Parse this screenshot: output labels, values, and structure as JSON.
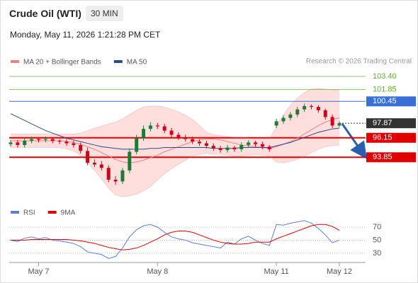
{
  "header": {
    "title": "Crude Oil (WTI)",
    "interval": "30 MIN",
    "timestamp": "Monday, May 11, 2026 1:21:28 PM CET",
    "credit": "Research © 2026 Trading Central"
  },
  "chart_data": [
    {
      "type": "candlestick",
      "ylim": [
        90.2,
        104.4
      ],
      "up_color": "#1e7b34",
      "down_color": "#d0021b",
      "open": [
        95.4,
        95.6,
        95.3,
        95.8,
        96.0,
        95.9,
        96.0,
        95.8,
        95.7,
        95.5,
        95.3,
        94.6,
        93.2,
        93.0,
        92.6,
        91.2,
        91.0,
        92.3,
        94.5,
        96.1,
        97.2,
        97.6,
        97.5,
        97.0,
        96.5,
        96.2,
        96.0,
        95.7,
        95.5,
        95.2,
        94.9,
        94.7,
        95.0,
        94.8,
        95.3,
        95.6,
        95.4,
        95.1,
        97.6,
        98.1,
        98.5,
        98.9,
        99.5,
        99.9,
        99.8,
        99.4,
        98.6,
        97.6
      ],
      "high": [
        95.9,
        95.9,
        96.1,
        96.3,
        96.2,
        96.3,
        96.2,
        96.0,
        96.0,
        95.8,
        95.6,
        95.0,
        93.6,
        93.4,
        92.9,
        91.6,
        92.6,
        94.9,
        96.5,
        97.6,
        98.0,
        97.9,
        97.8,
        97.3,
        96.8,
        96.5,
        96.3,
        96.0,
        95.8,
        95.5,
        95.2,
        95.3,
        95.2,
        95.6,
        95.9,
        95.8,
        95.7,
        95.3,
        98.4,
        98.8,
        99.2,
        99.8,
        100.2,
        100.1,
        100.0,
        99.6,
        98.9,
        98.1
      ],
      "low": [
        95.1,
        95.0,
        95.0,
        95.5,
        95.6,
        95.6,
        95.5,
        95.4,
        95.2,
        95.0,
        94.3,
        92.9,
        92.7,
        92.3,
        90.9,
        90.6,
        90.7,
        92.0,
        94.2,
        95.8,
        96.9,
        97.2,
        96.7,
        96.2,
        95.9,
        95.7,
        95.4,
        95.2,
        94.9,
        94.6,
        94.4,
        94.4,
        94.5,
        94.5,
        95.0,
        95.1,
        94.8,
        94.5,
        97.3,
        97.8,
        98.2,
        98.6,
        99.2,
        99.5,
        99.1,
        98.3,
        97.3,
        97.4
      ],
      "close": [
        95.6,
        95.3,
        95.8,
        96.0,
        95.9,
        96.0,
        95.8,
        95.7,
        95.5,
        95.3,
        94.6,
        93.2,
        93.0,
        92.6,
        91.2,
        91.0,
        92.3,
        94.5,
        96.1,
        97.2,
        97.6,
        97.5,
        97.0,
        96.5,
        96.2,
        96.0,
        95.7,
        95.5,
        95.2,
        94.9,
        94.7,
        95.0,
        94.8,
        95.3,
        95.6,
        95.4,
        95.1,
        94.8,
        98.1,
        98.5,
        98.9,
        99.5,
        99.9,
        99.8,
        99.4,
        98.6,
        97.6,
        97.87
      ],
      "series": [
        {
          "name": "MA 20 + Bollinger Bands",
          "color": "#f08080",
          "band_color": "#ffd6d6",
          "values": [
            95.8,
            95.8,
            95.8,
            95.8,
            95.8,
            95.8,
            95.8,
            95.8,
            95.7,
            95.6,
            95.4,
            95.1,
            94.8,
            94.4,
            94.0,
            93.6,
            93.3,
            93.2,
            93.3,
            93.5,
            93.8,
            94.1,
            94.5,
            94.8,
            95.1,
            95.4,
            95.7,
            95.9,
            96.0,
            96.0,
            95.9,
            95.7,
            95.5,
            95.3,
            95.2,
            95.1,
            95.0,
            94.9,
            95.1,
            95.4,
            95.7,
            96.1,
            96.6,
            97.1,
            97.6,
            98.0,
            98.3,
            98.5
          ],
          "upper": [
            96.6,
            96.6,
            96.6,
            96.6,
            96.6,
            96.6,
            96.6,
            96.6,
            96.6,
            96.6,
            96.7,
            97.0,
            97.3,
            97.5,
            97.8,
            98.0,
            98.4,
            98.9,
            99.4,
            99.8,
            99.9,
            99.9,
            99.8,
            99.5,
            99.2,
            98.8,
            98.3,
            97.6,
            96.8,
            96.5,
            96.4,
            96.3,
            96.2,
            96.2,
            96.1,
            96.0,
            96.0,
            96.0,
            97.5,
            98.8,
            100.0,
            100.8,
            101.5,
            101.9,
            102.0,
            101.9,
            101.8,
            101.8
          ],
          "lower": [
            95.0,
            95.0,
            95.0,
            95.0,
            95.0,
            95.0,
            95.0,
            95.0,
            94.8,
            94.6,
            94.1,
            93.2,
            92.3,
            91.3,
            90.2,
            89.4,
            89.2,
            89.3,
            89.5,
            89.9,
            90.4,
            91.2,
            91.9,
            92.5,
            93.0,
            93.5,
            94.0,
            94.2,
            94.3,
            94.2,
            94.2,
            94.1,
            94.0,
            94.0,
            94.1,
            94.2,
            94.1,
            94.0,
            93.3,
            93.2,
            93.4,
            93.6,
            94.0,
            94.4,
            94.8,
            95.1,
            95.2,
            95.3
          ]
        },
        {
          "name": "MA 50",
          "color": "#2b4a8b",
          "values": [
            99.0,
            98.6,
            98.2,
            97.8,
            97.4,
            97.0,
            96.7,
            96.4,
            96.1,
            95.9,
            95.7,
            95.5,
            95.3,
            95.1,
            95.0,
            94.9,
            94.8,
            94.8,
            94.8,
            94.8,
            94.9,
            94.9,
            95.0,
            95.0,
            95.0,
            95.0,
            95.0,
            95.0,
            95.0,
            94.9,
            94.9,
            94.9,
            94.9,
            95.0,
            95.0,
            95.0,
            95.0,
            95.0,
            95.2,
            95.4,
            95.6,
            95.9,
            96.2,
            96.5,
            96.8,
            97.0,
            97.2,
            97.3
          ]
        }
      ],
      "levels": [
        {
          "value": 103.4,
          "label": "103.40",
          "color": "#5fae2e",
          "boxed": false,
          "line": "thin"
        },
        {
          "value": 101.85,
          "label": "101.85",
          "color": "#5fae2e",
          "boxed": false,
          "line": "thin"
        },
        {
          "value": 100.45,
          "label": "100.45",
          "color": "#3a6fd8",
          "boxed": true,
          "line": "thin"
        },
        {
          "value": 97.87,
          "label": "97.87",
          "color": "#333333",
          "boxed": true,
          "line": "dotted"
        },
        {
          "value": 96.15,
          "label": "96.15",
          "color": "#e00000",
          "boxed": true,
          "line": "bold"
        },
        {
          "value": 93.85,
          "label": "93.85",
          "color": "#e00000",
          "boxed": true,
          "line": "bold"
        }
      ]
    },
    {
      "type": "line",
      "ylim": [
        18,
        83
      ],
      "yticks": [
        30,
        50,
        70
      ],
      "grid": true,
      "categories": [
        null,
        null,
        null,
        null,
        "May 7",
        null,
        null,
        null,
        null,
        null,
        null,
        null,
        null,
        null,
        null,
        null,
        null,
        null,
        null,
        null,
        null,
        "May 8",
        null,
        null,
        null,
        null,
        null,
        null,
        null,
        null,
        null,
        null,
        null,
        null,
        null,
        null,
        null,
        null,
        "May 11",
        null,
        null,
        null,
        null,
        null,
        null,
        null,
        null,
        "May 12"
      ],
      "series": [
        {
          "name": "RSI",
          "color": "#5b7fd6",
          "values": [
            50,
            48,
            53,
            55,
            52,
            54,
            50,
            49,
            47,
            45,
            40,
            32,
            30,
            28,
            22,
            25,
            38,
            55,
            66,
            72,
            74,
            70,
            62,
            55,
            52,
            50,
            46,
            44,
            42,
            40,
            38,
            47,
            44,
            52,
            56,
            50,
            45,
            42,
            74,
            73,
            76,
            78,
            80,
            76,
            68,
            58,
            46,
            50
          ]
        },
        {
          "name": "9MA",
          "color": "#e00000",
          "values": [
            50,
            50,
            50,
            51,
            51,
            51,
            51,
            51,
            51,
            50,
            49,
            47,
            45,
            42,
            39,
            37,
            35,
            36,
            38,
            42,
            47,
            52,
            58,
            62,
            64,
            64,
            62,
            58,
            54,
            50,
            47,
            45,
            44,
            44,
            45,
            47,
            47,
            47,
            52,
            56,
            60,
            64,
            68,
            72,
            74,
            74,
            71,
            65
          ]
        }
      ]
    }
  ]
}
